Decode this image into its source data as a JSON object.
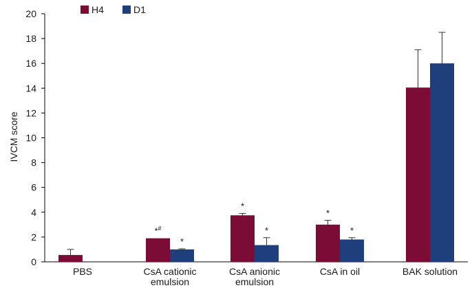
{
  "chart_data": {
    "type": "bar",
    "title": "",
    "xlabel": "",
    "ylabel": "IVCM score",
    "ylim": [
      0,
      20
    ],
    "yticks": [
      0,
      2,
      4,
      6,
      8,
      10,
      12,
      14,
      16,
      18,
      20
    ],
    "grid": false,
    "legend_position": "top-left",
    "categories": [
      [
        "PBS"
      ],
      [
        "CsA cationic",
        "emulsion"
      ],
      [
        "CsA anionic",
        "emulsion"
      ],
      [
        "CsA in oil"
      ],
      [
        "BAK solution"
      ]
    ],
    "series": [
      {
        "name": "H4",
        "color": "#7b0c35",
        "values": [
          0.55,
          1.9,
          3.75,
          3.0,
          14.05
        ],
        "errors": [
          0.45,
          0.0,
          0.15,
          0.35,
          3.05
        ],
        "annotations": [
          "",
          "*#",
          "*",
          "*",
          ""
        ]
      },
      {
        "name": "D1",
        "color": "#1e3f7c",
        "values": [
          0.0,
          1.0,
          1.35,
          1.8,
          16.0
        ],
        "errors": [
          0.0,
          0.05,
          0.6,
          0.15,
          2.5
        ],
        "annotations": [
          "",
          "*",
          "*",
          "*",
          ""
        ]
      }
    ]
  }
}
